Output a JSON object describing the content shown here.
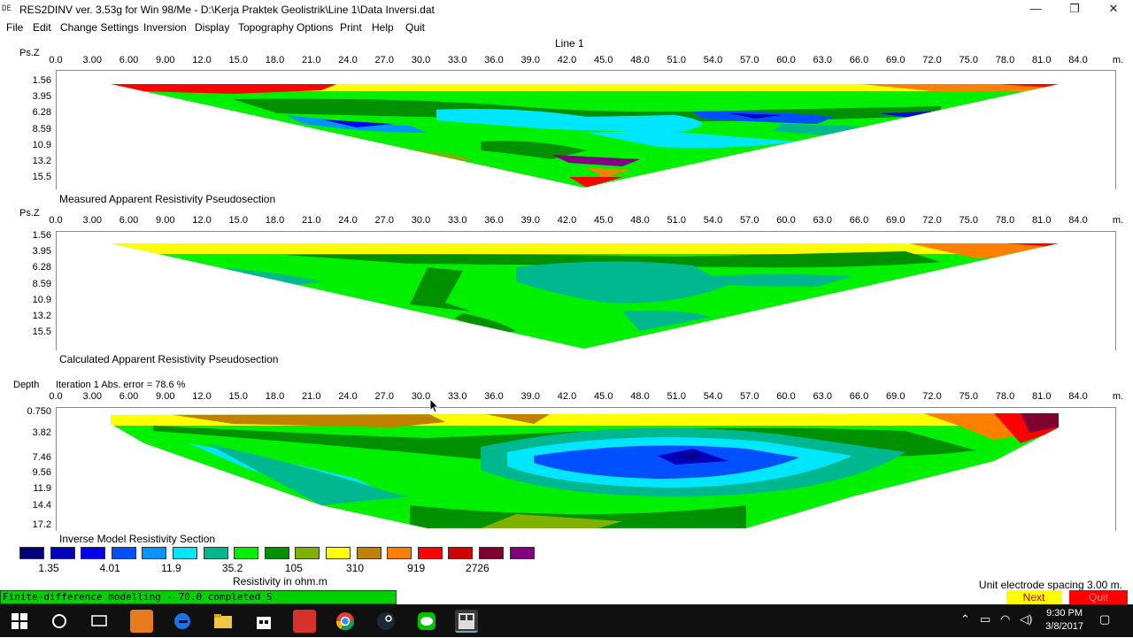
{
  "window": {
    "app_icon": "DE",
    "title": "RES2DINV ver. 3.53g for Win 98/Me - D:\\Kerja Praktek Geolistrik\\Line 1\\Data Inversi.dat",
    "minimize": "—",
    "restore": "❐",
    "close": "✕"
  },
  "menu": [
    "File",
    "Edit",
    "Change Settings",
    "Inversion",
    "Display",
    "Topography Options",
    "Print",
    "Help",
    "Quit"
  ],
  "line_title": "Line 1",
  "x_ticks": [
    "0.0",
    "3.00",
    "6.00",
    "9.00",
    "12.0",
    "15.0",
    "18.0",
    "21.0",
    "24.0",
    "27.0",
    "30.0",
    "33.0",
    "36.0",
    "39.0",
    "42.0",
    "45.0",
    "48.0",
    "51.0",
    "54.0",
    "57.0",
    "60.0",
    "63.0",
    "66.0",
    "69.0",
    "72.0",
    "75.0",
    "78.0",
    "81.0",
    "84.0"
  ],
  "x_unit": "m.",
  "pseudo_y_ticks": [
    "1.56",
    "3.95",
    "6.28",
    "8.59",
    "10.9",
    "13.2",
    "15.5"
  ],
  "model_y_ticks": [
    "0.750",
    "3.82",
    "7.46",
    "9.56",
    "11.9",
    "14.4",
    "17.2"
  ],
  "measured": {
    "axis_label": "Ps.Z",
    "title": "Measured Apparent Resistivity Pseudosection"
  },
  "calculated": {
    "axis_label": "Ps.Z",
    "title": "Calculated Apparent Resistivity Pseudosection"
  },
  "model": {
    "axis_label": "Depth",
    "iteration": "Iteration 1 Abs. error = 78.6 %",
    "title": "Inverse Model Resistivity Section"
  },
  "legend": {
    "colors": [
      "#00007a",
      "#0000b8",
      "#0000f0",
      "#0050ff",
      "#0096ff",
      "#00e6ff",
      "#00b890",
      "#00f000",
      "#009000",
      "#80b000",
      "#ffff00",
      "#c08000",
      "#ff8000",
      "#ff0000",
      "#d00000",
      "#800030",
      "#800080"
    ],
    "values": [
      "1.35",
      "4.01",
      "11.9",
      "35.2",
      "105",
      "310",
      "919",
      "2726"
    ],
    "unit": "Resistivity in ohm.m"
  },
  "status": {
    "progress_text": "Finite-difference modelling - 70.0 completed S",
    "progress_fraction": 0.35,
    "unit_spacing": "Unit electrode spacing 3.00 m.",
    "next_label": "Next",
    "quit_label": "Quit"
  },
  "taskbar": {
    "time": "9:30 PM",
    "date": "3/8/2017"
  }
}
